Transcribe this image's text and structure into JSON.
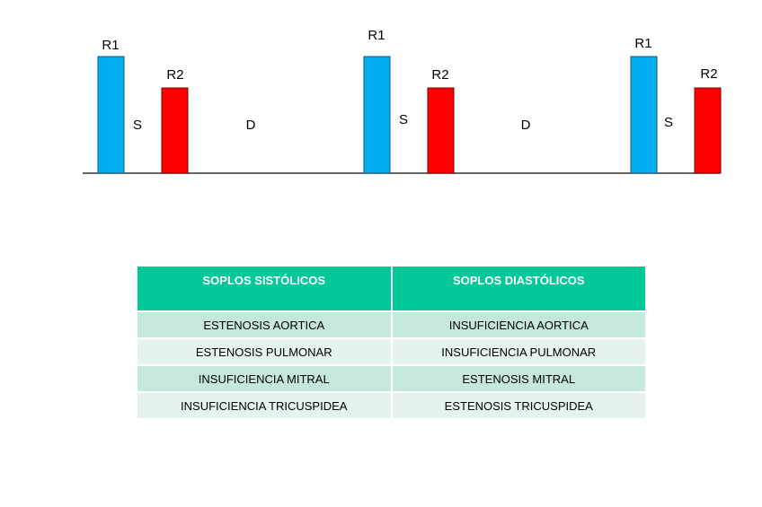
{
  "diagram": {
    "cycles": [
      {
        "r1": "R1",
        "s": "S",
        "r2": "R2",
        "d": "D"
      },
      {
        "r1": "R1",
        "s": "S",
        "r2": "R2",
        "d": "D"
      },
      {
        "r1": "R1",
        "s": "S",
        "r2": "R2"
      }
    ],
    "colors": {
      "r1": "#00b0f0",
      "r2": "#ff0000",
      "baseline": "#333333"
    }
  },
  "table": {
    "headers": [
      "SOPLOS SISTÓLICOS",
      "SOPLOS DIASTÓLICOS"
    ],
    "rows": [
      [
        "ESTENOSIS AORTICA",
        "INSUFICIENCIA AORTICA"
      ],
      [
        "ESTENOSIS PULMONAR",
        "INSUFICIENCIA PULMONAR"
      ],
      [
        "INSUFICIENCIA MITRAL",
        "ESTENOSIS MITRAL"
      ],
      [
        "INSUFICIENCIA TRICUSPIDEA",
        "ESTENOSIS TRICUSPIDEA"
      ]
    ],
    "colors": {
      "header": "#00c896",
      "row_dark": "#c6e8da",
      "row_light": "#e4f4ec"
    }
  }
}
